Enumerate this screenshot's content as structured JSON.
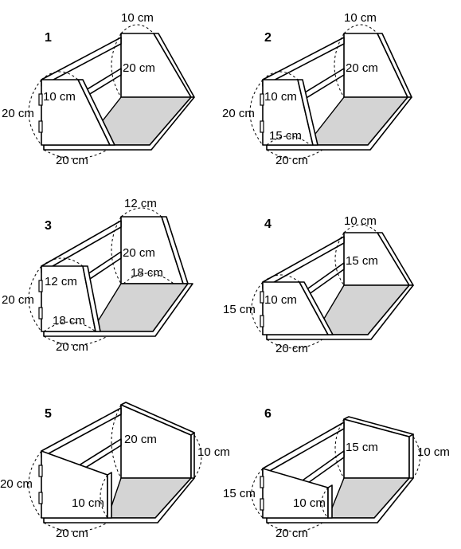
{
  "figures": [
    {
      "number": "1",
      "labels": [
        "10 cm",
        "20 cm",
        "10 cm",
        "20 cm",
        "20 cm"
      ]
    },
    {
      "number": "2",
      "labels": [
        "10 cm",
        "20 cm",
        "10 cm",
        "20 cm",
        "15 cm",
        "20 cm"
      ]
    },
    {
      "number": "3",
      "labels": [
        "12 cm",
        "20 cm",
        "18 cm",
        "12 cm",
        "20 cm",
        "18 cm",
        "20 cm"
      ]
    },
    {
      "number": "4",
      "labels": [
        "10 cm",
        "15 cm",
        "10 cm",
        "15 cm",
        "20 cm"
      ]
    },
    {
      "number": "5",
      "labels": [
        "20 cm",
        "10 cm",
        "20 cm",
        "10 cm",
        "20 cm"
      ]
    },
    {
      "number": "6",
      "labels": [
        "15 cm",
        "10 cm",
        "15 cm",
        "10 cm",
        "20 cm"
      ]
    }
  ]
}
